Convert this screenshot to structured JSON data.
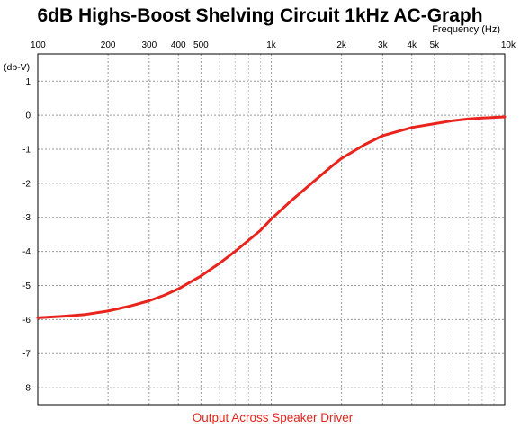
{
  "chart_data": {
    "type": "line",
    "title": "6dB Highs-Boost Shelving Circuit 1kHz AC-Graph",
    "xlabel": "Frequency  (Hz)",
    "ylabel": "(db-V)",
    "x_scale": "log",
    "xlim": [
      100,
      10000
    ],
    "ylim": [
      -8.5,
      1.8
    ],
    "grid": true,
    "x_ticks": [
      {
        "value": 100,
        "label": "100"
      },
      {
        "value": 200,
        "label": "200"
      },
      {
        "value": 300,
        "label": "300"
      },
      {
        "value": 400,
        "label": "400"
      },
      {
        "value": 500,
        "label": "500"
      },
      {
        "value": 1000,
        "label": "1k"
      },
      {
        "value": 2000,
        "label": "2k"
      },
      {
        "value": 3000,
        "label": "3k"
      },
      {
        "value": 4000,
        "label": "4k"
      },
      {
        "value": 5000,
        "label": "5k"
      },
      {
        "value": 10000,
        "label": "10k"
      }
    ],
    "y_ticks": [
      {
        "value": 1,
        "label": "1"
      },
      {
        "value": 0,
        "label": "0"
      },
      {
        "value": -1,
        "label": "-1"
      },
      {
        "value": -2,
        "label": "-2"
      },
      {
        "value": -3,
        "label": "-3"
      },
      {
        "value": -4,
        "label": "-4"
      },
      {
        "value": -5,
        "label": "-5"
      },
      {
        "value": -6,
        "label": "-6"
      },
      {
        "value": -7,
        "label": "-7"
      },
      {
        "value": -8,
        "label": "-8"
      }
    ],
    "series": [
      {
        "name": "Output Across Speaker Driver",
        "color": "#e8241c",
        "x": [
          100,
          130,
          160,
          200,
          250,
          300,
          350,
          400,
          500,
          600,
          700,
          800,
          900,
          1000,
          1200,
          1500,
          1800,
          2000,
          2500,
          3000,
          4000,
          5000,
          6000,
          7000,
          8000,
          10000
        ],
        "y": [
          -5.95,
          -5.9,
          -5.85,
          -5.75,
          -5.6,
          -5.45,
          -5.28,
          -5.1,
          -4.72,
          -4.35,
          -4.0,
          -3.67,
          -3.38,
          -3.05,
          -2.55,
          -1.98,
          -1.52,
          -1.27,
          -0.87,
          -0.6,
          -0.36,
          -0.25,
          -0.16,
          -0.11,
          -0.08,
          -0.05
        ]
      }
    ],
    "caption": "Output Across Speaker Driver",
    "colors": {
      "curve": "#e8241c",
      "grid": "#9a9a9a",
      "minor_grid": "#c4c4c4",
      "frame": "#000000",
      "caption": "#e8241c"
    }
  }
}
